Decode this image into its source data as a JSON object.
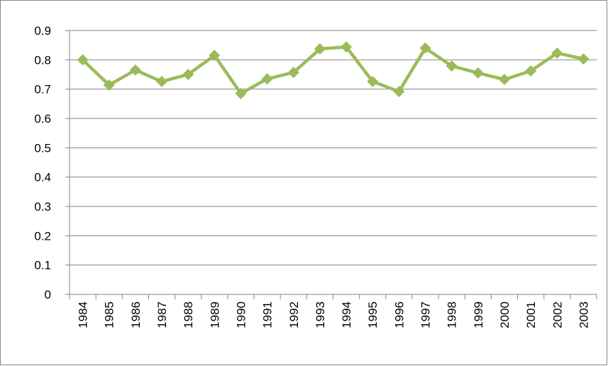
{
  "chart_data": {
    "type": "line",
    "categories": [
      "1984",
      "1985",
      "1986",
      "1987",
      "1988",
      "1989",
      "1990",
      "1991",
      "1992",
      "1993",
      "1994",
      "1995",
      "1996",
      "1997",
      "1998",
      "1999",
      "2000",
      "2001",
      "2002",
      "2003"
    ],
    "series": [
      {
        "color": "#9bbb59",
        "values": [
          0.8,
          0.714,
          0.765,
          0.726,
          0.75,
          0.815,
          0.685,
          0.735,
          0.757,
          0.837,
          0.844,
          0.726,
          0.692,
          0.84,
          0.779,
          0.755,
          0.733,
          0.762,
          0.823,
          0.803
        ]
      }
    ],
    "ylim": [
      0,
      0.9
    ],
    "yticks": [
      0,
      0.1,
      0.2,
      0.3,
      0.4,
      0.5,
      0.6,
      0.7,
      0.8,
      0.9
    ],
    "grid": true
  }
}
